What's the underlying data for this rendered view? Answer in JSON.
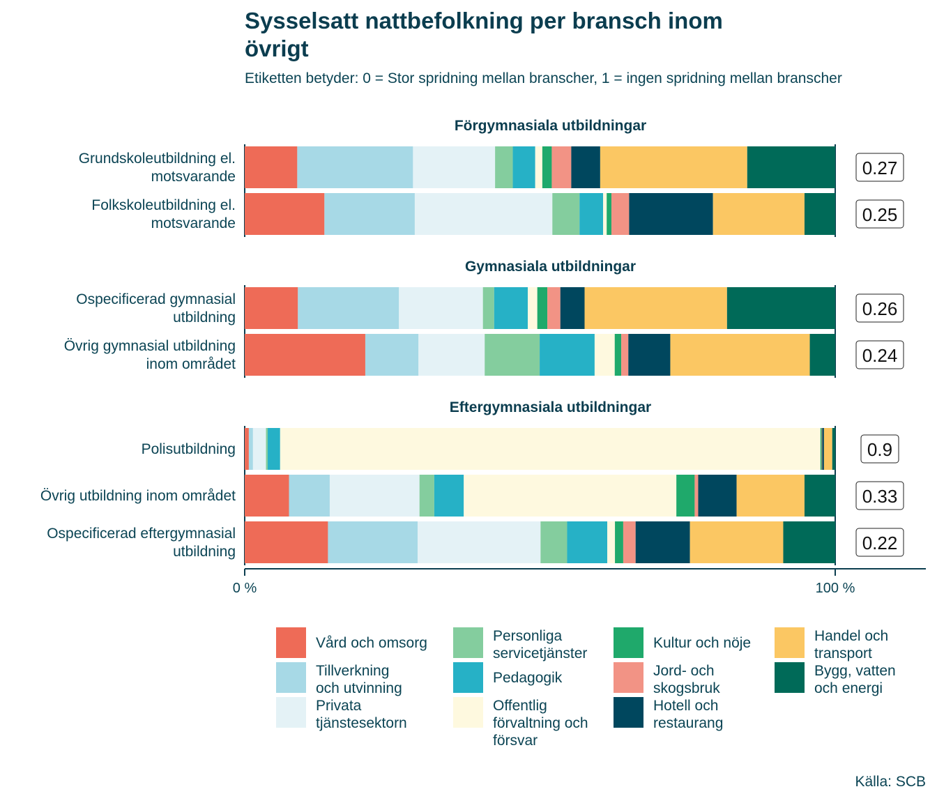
{
  "title": "Sysselsatt nattbefolkning per bransch inom övrigt",
  "subtitle": "Etiketten betyder: 0 = Stor spridning mellan branscher, 1 = ingen spridning mellan branscher",
  "caption": "Källa: SCB",
  "chart_data": {
    "type": "bar",
    "orientation": "horizontal",
    "stacked": "percent",
    "xlim": [
      0,
      100
    ],
    "xticks": [
      "0 %",
      "100 %"
    ],
    "legend_position": "bottom",
    "series": [
      {
        "name": "Vård och omsorg",
        "color": "#EE6B57"
      },
      {
        "name": "Tillverkning och utvinning",
        "color": "#A7D9E6"
      },
      {
        "name": "Privata tjänstesektorn",
        "color": "#E4F2F6"
      },
      {
        "name": "Personliga servicetjänster",
        "color": "#84CD9E"
      },
      {
        "name": "Pedagogik",
        "color": "#26B1C6"
      },
      {
        "name": "Offentlig förvaltning och försvar",
        "color": "#FEF9DF"
      },
      {
        "name": "Kultur och nöje",
        "color": "#1FA96B"
      },
      {
        "name": "Jord- och skogsbruk",
        "color": "#F29385"
      },
      {
        "name": "Hotell och restaurang",
        "color": "#00475E"
      },
      {
        "name": "Handel och transport",
        "color": "#FBC763"
      },
      {
        "name": "Bygg, vatten och energi",
        "color": "#006A58"
      }
    ],
    "panels": [
      {
        "title": "Förgymnasiala utbildningar",
        "rows": [
          {
            "label": [
              "Grundskoleutbildning el.",
              "motsvarande"
            ],
            "index": "0.27",
            "values": [
              8.9,
              19.6,
              13.9,
              3.0,
              3.8,
              1.2,
              1.6,
              3.3,
              4.9,
              24.9,
              14.9
            ]
          },
          {
            "label": [
              "Folkskoleutbildning el.",
              "motsvarande"
            ],
            "index": "0.25",
            "values": [
              13.5,
              15.3,
              23.3,
              4.6,
              4.0,
              0.6,
              0.8,
              3.0,
              14.2,
              15.5,
              5.2
            ]
          }
        ]
      },
      {
        "title": "Gymnasiala utbildningar",
        "rows": [
          {
            "label": [
              "Ospecificerad gymnasial",
              "utbildning"
            ],
            "index": "0.26",
            "values": [
              9.0,
              17.1,
              14.2,
              1.9,
              5.7,
              1.6,
              1.7,
              2.2,
              4.1,
              24.1,
              18.3
            ]
          },
          {
            "label": [
              "Övrig gymnasial utbildning",
              "inom området"
            ],
            "index": "0.24",
            "values": [
              20.4,
              9.0,
              11.2,
              9.3,
              9.3,
              3.4,
              1.1,
              1.2,
              7.1,
              23.6,
              4.3
            ]
          }
        ]
      },
      {
        "title": "Eftergymnasiala utbildningar",
        "rows": [
          {
            "label": [
              "Polisutbildning"
            ],
            "index": "0.9",
            "values": [
              0.7,
              0.7,
              2.2,
              0.3,
              2.1,
              91.5,
              0.2,
              0.1,
              0.3,
              1.4,
              0.5
            ]
          },
          {
            "label": [
              "Övrig utbildning inom området"
            ],
            "index": "0.33",
            "values": [
              7.5,
              6.9,
              15.2,
              2.5,
              5.0,
              36.0,
              3.1,
              0.6,
              6.5,
              11.5,
              5.2
            ]
          },
          {
            "label": [
              "Ospecificerad eftergymnasial",
              "utbildning"
            ],
            "index": "0.22",
            "values": [
              14.1,
              15.2,
              20.8,
              4.5,
              6.8,
              1.3,
              1.4,
              2.1,
              9.2,
              15.8,
              8.8
            ]
          }
        ]
      }
    ]
  },
  "legend": [
    {
      "lines": [
        "Vård och omsorg"
      ],
      "color": "#EE6B57"
    },
    {
      "lines": [
        "Tillverkning",
        "och utvinning"
      ],
      "color": "#A7D9E6"
    },
    {
      "lines": [
        "Privata",
        "tjänstesektorn"
      ],
      "color": "#E4F2F6"
    },
    {
      "lines": [
        "Personliga",
        "servicetjänster"
      ],
      "color": "#84CD9E"
    },
    {
      "lines": [
        "Pedagogik"
      ],
      "color": "#26B1C6"
    },
    {
      "lines": [
        "Offentlig",
        "förvaltning och",
        "försvar"
      ],
      "color": "#FEF9DF"
    },
    {
      "lines": [
        "Kultur och nöje"
      ],
      "color": "#1FA96B"
    },
    {
      "lines": [
        "Jord- och",
        "skogsbruk"
      ],
      "color": "#F29385"
    },
    {
      "lines": [
        "Hotell och",
        "restaurang"
      ],
      "color": "#00475E"
    },
    {
      "lines": [
        "Handel och",
        "transport"
      ],
      "color": "#FBC763"
    },
    {
      "lines": [
        "Bygg, vatten",
        "och energi"
      ],
      "color": "#006A58"
    }
  ]
}
